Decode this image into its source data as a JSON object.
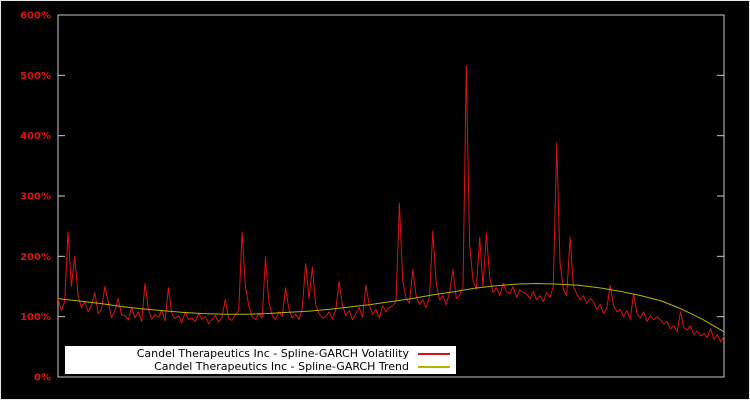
{
  "chart_data": {
    "type": "line",
    "title": "",
    "xlabel": "",
    "ylabel": "",
    "ylim": [
      0,
      600
    ],
    "grid": false,
    "legend_position": "bottom-center-inside",
    "background_color": "#000000",
    "plot_border_color": "#c8c8c8",
    "tick_label_color": "#dd1111",
    "ytick_values": [
      0,
      100,
      200,
      300,
      400,
      500,
      600
    ],
    "ytick_labels": [
      "0%",
      "100%",
      "200%",
      "300%",
      "400%",
      "500%",
      "600%"
    ],
    "series": [
      {
        "name": "Candel Therapeutics Inc - Spline-GARCH Volatility",
        "color": "#dd1111",
        "values": [
          130,
          110,
          125,
          240,
          150,
          200,
          135,
          115,
          125,
          108,
          118,
          140,
          105,
          112,
          150,
          125,
          98,
          110,
          130,
          103,
          102,
          95,
          115,
          98,
          108,
          92,
          155,
          112,
          96,
          104,
          99,
          110,
          93,
          148,
          105,
          97,
          102,
          90,
          108,
          95,
          98,
          92,
          105,
          96,
          100,
          88,
          95,
          102,
          91,
          99,
          128,
          97,
          94,
          103,
          110,
          240,
          150,
          118,
          100,
          95,
          105,
          98,
          198,
          125,
          102,
          96,
          108,
          100,
          148,
          112,
          98,
          104,
          95,
          115,
          188,
          130,
          182,
          120,
          105,
          98,
          100,
          108,
          96,
          112,
          158,
          118,
          102,
          110,
          95,
          105,
          115,
          99,
          152,
          120,
          104,
          112,
          98,
          118,
          108,
          115,
          118,
          125,
          288,
          160,
          130,
          122,
          178,
          135,
          120,
          128,
          115,
          132,
          242,
          155,
          128,
          135,
          120,
          140,
          178,
          130,
          135,
          150,
          515,
          220,
          160,
          145,
          232,
          150,
          238,
          165,
          140,
          148,
          135,
          155,
          142,
          138,
          150,
          132,
          145,
          140,
          138,
          130,
          142,
          128,
          135,
          125,
          140,
          132,
          150,
          388,
          190,
          145,
          135,
          232,
          150,
          138,
          128,
          135,
          122,
          130,
          125,
          112,
          120,
          105,
          115,
          152,
          118,
          108,
          112,
          100,
          110,
          96,
          138,
          105,
          98,
          108,
          92,
          102,
          95,
          100,
          95,
          88,
          92,
          80,
          85,
          75,
          108,
          82,
          78,
          85,
          70,
          76,
          68,
          72,
          65,
          80,
          62,
          70,
          58,
          68
        ]
      },
      {
        "name": "Candel Therapeutics Inc - Spline-GARCH Trend",
        "color": "#b5b500",
        "values": [
          130,
          126,
          122,
          117,
          113,
          110,
          107,
          105,
          104,
          104,
          105,
          107,
          109,
          112,
          116,
          120,
          125,
          130,
          136,
          141,
          147,
          151,
          154,
          155,
          154,
          152,
          148,
          142,
          135,
          126,
          112,
          95,
          75
        ]
      }
    ]
  },
  "legend": {
    "row1_label": "Candel Therapeutics Inc - Spline-GARCH Volatility",
    "row2_label": "Candel Therapeutics Inc - Spline-GARCH Trend"
  }
}
